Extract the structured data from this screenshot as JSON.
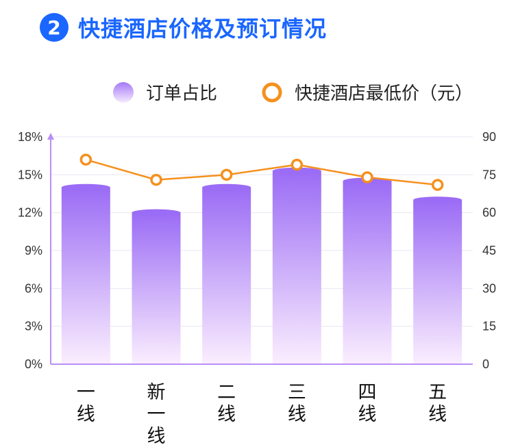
{
  "header": {
    "badge": "2",
    "title": "快捷酒店价格及预订情况"
  },
  "legend": {
    "bar_label": "订单占比",
    "line_label": "快捷酒店最低价（元）"
  },
  "colors": {
    "title": "#1a66ff",
    "bar_top": "#9b6cf5",
    "bar_bottom": "#fbeefe",
    "line": "#f5901e",
    "axis": "#b98ef5"
  },
  "chart_data": {
    "type": "bar",
    "categories": [
      "一线",
      "新一线",
      "二线",
      "三线",
      "四线",
      "五线"
    ],
    "y_left": {
      "ylim": [
        0,
        18
      ],
      "ticks": [
        "0%",
        "3%",
        "6%",
        "9%",
        "12%",
        "15%",
        "18%"
      ]
    },
    "y_right": {
      "ylim": [
        0,
        90
      ],
      "ticks": [
        "0",
        "15",
        "30",
        "45",
        "60",
        "75",
        "90"
      ]
    },
    "series": [
      {
        "name": "订单占比",
        "type": "bar",
        "axis": "left",
        "unit": "%",
        "values": [
          14.0,
          12.0,
          14.0,
          15.3,
          14.5,
          13.0
        ]
      },
      {
        "name": "快捷酒店最低价（元）",
        "type": "line",
        "axis": "right",
        "values": [
          81,
          73,
          75,
          79,
          74,
          71
        ]
      }
    ],
    "grid": true,
    "legend_position": "top"
  }
}
